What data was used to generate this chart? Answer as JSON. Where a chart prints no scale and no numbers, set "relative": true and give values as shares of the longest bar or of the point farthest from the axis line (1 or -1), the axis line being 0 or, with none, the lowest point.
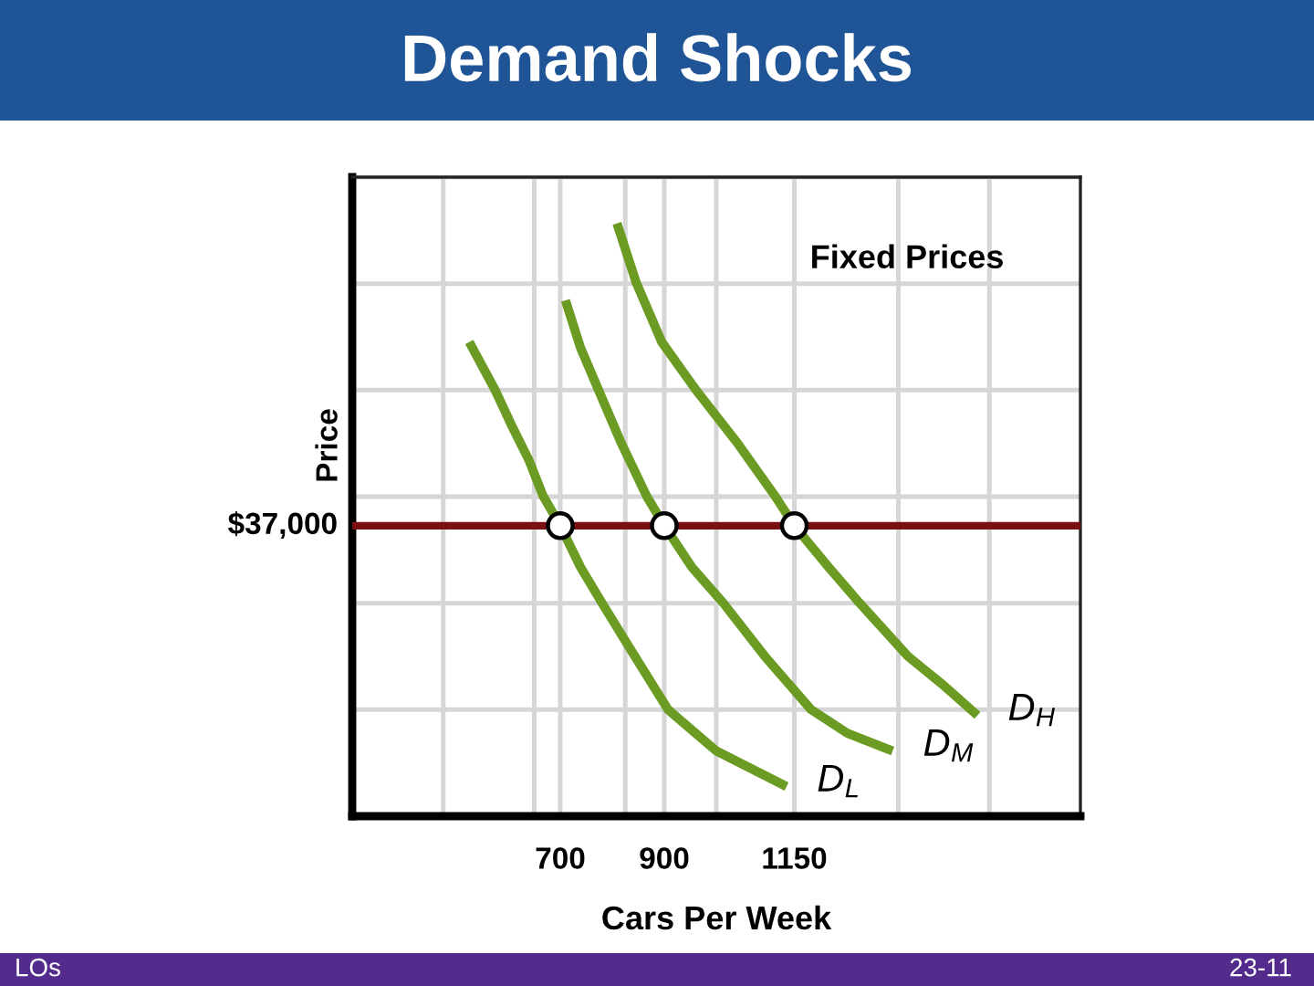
{
  "chart_data": {
    "type": "line",
    "title": "Demand Shocks",
    "xlabel": "Cars Per Week",
    "ylabel": "Price",
    "relative": true,
    "xlim": [
      300,
      1700
    ],
    "xticks": [
      {
        "value": 475,
        "label": null
      },
      {
        "value": 650,
        "label": null
      },
      700,
      {
        "value": 825,
        "label": null
      },
      900,
      {
        "value": 1000,
        "label": null
      },
      1150,
      {
        "value": 1350,
        "label": null
      },
      {
        "value": 1525,
        "label": null
      }
    ],
    "grid": true,
    "line_style": "solid",
    "marker": "none",
    "series": [
      {
        "name": "D$_{L}$",
        "color": "#6b9b22",
        "x": [
          525,
          574,
          606,
          640,
          667,
          700,
          739,
          780,
          836,
          907,
          1000,
          1135
        ],
        "values": [
          0.8,
          0.72,
          0.66,
          0.6,
          0.54,
          0.49,
          0.42,
          0.36,
          0.28,
          0.18,
          0.11,
          0.05
        ]
      },
      {
        "name": "D$_{M}$",
        "color": "#6b9b22",
        "x": [
          710,
          739,
          773,
          817,
          866,
          900,
          953,
          1013,
          1093,
          1182,
          1252,
          1339
        ],
        "values": [
          0.87,
          0.79,
          0.72,
          0.63,
          0.54,
          0.49,
          0.42,
          0.36,
          0.27,
          0.18,
          0.14,
          0.11
        ]
      },
      {
        "name": "D$_{H}$",
        "color": "#6b9b22",
        "x": [
          809,
          846,
          895,
          960,
          1040,
          1113,
          1150,
          1216,
          1275,
          1368,
          1438,
          1502
        ],
        "values": [
          1.0,
          0.9,
          0.8,
          0.72,
          0.63,
          0.54,
          0.49,
          0.42,
          0.36,
          0.27,
          0.22,
          0.17
        ]
      },
      {
        "type": "scatter",
        "color": "#ffffff",
        "marker": "circle",
        "x": [
          700,
          900,
          1150
        ],
        "values": [
          0.49,
          0.49,
          0.49
        ]
      }
    ],
    "ref_lines": [
      {
        "axis": "y",
        "value": 0.49,
        "color": "#7b1012"
      }
    ],
    "annotations": [
      "Fixed Prices",
      "$37,000",
      "LOs",
      "23-11"
    ]
  }
}
